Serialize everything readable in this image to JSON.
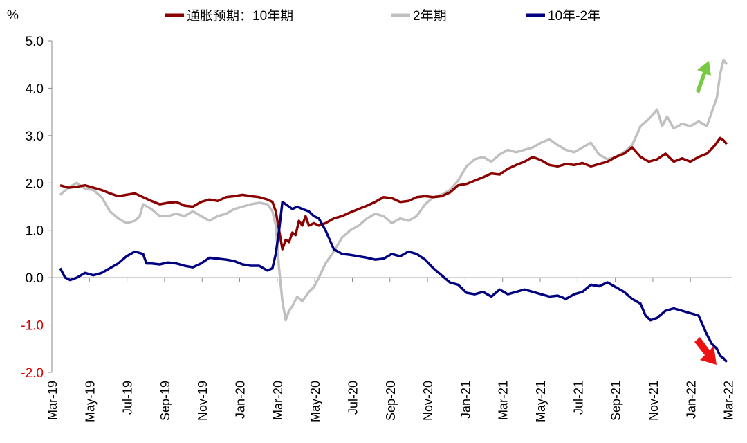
{
  "chart_data": {
    "type": "line",
    "y_unit": "%",
    "ylim": [
      -2.0,
      5.0
    ],
    "y_ticks": [
      {
        "value": 5.0,
        "label": "5.0"
      },
      {
        "value": 4.0,
        "label": "4.0"
      },
      {
        "value": 3.0,
        "label": "3.0"
      },
      {
        "value": 2.0,
        "label": "2.0"
      },
      {
        "value": 1.0,
        "label": "1.0"
      },
      {
        "value": 0.0,
        "label": "0.0"
      },
      {
        "value": -1.0,
        "label": "-1.0"
      },
      {
        "value": -2.0,
        "label": "-2.0"
      }
    ],
    "x_ticks": [
      "Mar-19",
      "May-19",
      "Jul-19",
      "Sep-19",
      "Nov-19",
      "Jan-20",
      "Mar-20",
      "May-20",
      "Jul-20",
      "Sep-20",
      "Nov-20",
      "Jan-21",
      "Mar-21",
      "May-21",
      "Jul-21",
      "Sep-21",
      "Nov-21",
      "Jan-22",
      "Mar-22"
    ],
    "xlim_months": [
      0,
      37
    ],
    "grid": false,
    "legend_position": "top",
    "series": [
      {
        "name": "通胀预期：10年期",
        "color": "#8b0000",
        "points": [
          [
            0,
            1.95
          ],
          [
            0.5,
            1.9
          ],
          [
            1,
            1.92
          ],
          [
            1.5,
            1.95
          ],
          [
            2,
            1.9
          ],
          [
            2.5,
            1.85
          ],
          [
            3,
            1.78
          ],
          [
            3.5,
            1.72
          ],
          [
            4,
            1.75
          ],
          [
            4.5,
            1.78
          ],
          [
            5,
            1.7
          ],
          [
            5.5,
            1.62
          ],
          [
            6,
            1.55
          ],
          [
            6.5,
            1.58
          ],
          [
            7,
            1.6
          ],
          [
            7.5,
            1.52
          ],
          [
            8,
            1.5
          ],
          [
            8.5,
            1.6
          ],
          [
            9,
            1.65
          ],
          [
            9.5,
            1.62
          ],
          [
            10,
            1.7
          ],
          [
            10.5,
            1.72
          ],
          [
            11,
            1.75
          ],
          [
            11.5,
            1.72
          ],
          [
            12,
            1.7
          ],
          [
            12.5,
            1.65
          ],
          [
            12.8,
            1.6
          ],
          [
            13,
            1.4
          ],
          [
            13.2,
            1.0
          ],
          [
            13.4,
            0.6
          ],
          [
            13.6,
            0.8
          ],
          [
            13.8,
            0.75
          ],
          [
            14,
            0.95
          ],
          [
            14.2,
            0.9
          ],
          [
            14.4,
            1.2
          ],
          [
            14.6,
            1.1
          ],
          [
            14.8,
            1.3
          ],
          [
            15,
            1.1
          ],
          [
            15.3,
            1.15
          ],
          [
            15.6,
            1.1
          ],
          [
            16,
            1.15
          ],
          [
            16.5,
            1.25
          ],
          [
            17,
            1.3
          ],
          [
            17.5,
            1.38
          ],
          [
            18,
            1.45
          ],
          [
            18.5,
            1.52
          ],
          [
            19,
            1.6
          ],
          [
            19.5,
            1.7
          ],
          [
            20,
            1.68
          ],
          [
            20.5,
            1.6
          ],
          [
            21,
            1.62
          ],
          [
            21.5,
            1.7
          ],
          [
            22,
            1.72
          ],
          [
            22.5,
            1.7
          ],
          [
            23,
            1.72
          ],
          [
            23.5,
            1.8
          ],
          [
            24,
            1.95
          ],
          [
            24.5,
            1.98
          ],
          [
            25,
            2.05
          ],
          [
            25.5,
            2.12
          ],
          [
            26,
            2.2
          ],
          [
            26.5,
            2.18
          ],
          [
            27,
            2.3
          ],
          [
            27.5,
            2.38
          ],
          [
            28,
            2.45
          ],
          [
            28.5,
            2.55
          ],
          [
            29,
            2.48
          ],
          [
            29.5,
            2.38
          ],
          [
            30,
            2.35
          ],
          [
            30.5,
            2.4
          ],
          [
            31,
            2.38
          ],
          [
            31.5,
            2.42
          ],
          [
            32,
            2.35
          ],
          [
            32.5,
            2.4
          ],
          [
            33,
            2.45
          ],
          [
            33.5,
            2.55
          ],
          [
            34,
            2.62
          ],
          [
            34.5,
            2.75
          ],
          [
            35,
            2.55
          ],
          [
            35.5,
            2.45
          ],
          [
            36,
            2.5
          ],
          [
            36.5,
            2.62
          ],
          [
            37,
            2.45
          ],
          [
            37.5,
            2.52
          ],
          [
            38,
            2.45
          ],
          [
            38.5,
            2.55
          ],
          [
            39,
            2.62
          ],
          [
            39.5,
            2.8
          ],
          [
            39.8,
            2.95
          ],
          [
            40,
            2.9
          ],
          [
            40.2,
            2.82
          ]
        ]
      },
      {
        "name": "2年期",
        "color": "#c0c0c0",
        "points": [
          [
            0,
            1.75
          ],
          [
            0.5,
            1.9
          ],
          [
            1,
            2.0
          ],
          [
            1.5,
            1.88
          ],
          [
            2,
            1.85
          ],
          [
            2.5,
            1.7
          ],
          [
            3,
            1.4
          ],
          [
            3.5,
            1.25
          ],
          [
            4,
            1.15
          ],
          [
            4.5,
            1.2
          ],
          [
            4.8,
            1.3
          ],
          [
            5,
            1.55
          ],
          [
            5.5,
            1.45
          ],
          [
            6,
            1.3
          ],
          [
            6.5,
            1.3
          ],
          [
            7,
            1.35
          ],
          [
            7.5,
            1.3
          ],
          [
            8,
            1.4
          ],
          [
            8.5,
            1.3
          ],
          [
            9,
            1.2
          ],
          [
            9.5,
            1.3
          ],
          [
            10,
            1.35
          ],
          [
            10.5,
            1.45
          ],
          [
            11,
            1.5
          ],
          [
            11.5,
            1.55
          ],
          [
            12,
            1.58
          ],
          [
            12.5,
            1.55
          ],
          [
            12.8,
            1.4
          ],
          [
            13,
            1.1
          ],
          [
            13.2,
            0.2
          ],
          [
            13.4,
            -0.5
          ],
          [
            13.6,
            -0.9
          ],
          [
            13.8,
            -0.7
          ],
          [
            14,
            -0.6
          ],
          [
            14.3,
            -0.4
          ],
          [
            14.6,
            -0.5
          ],
          [
            15,
            -0.3
          ],
          [
            15.3,
            -0.2
          ],
          [
            15.6,
            0.0
          ],
          [
            16,
            0.3
          ],
          [
            16.5,
            0.55
          ],
          [
            17,
            0.85
          ],
          [
            17.5,
            1.0
          ],
          [
            18,
            1.1
          ],
          [
            18.5,
            1.25
          ],
          [
            19,
            1.35
          ],
          [
            19.5,
            1.3
          ],
          [
            20,
            1.15
          ],
          [
            20.5,
            1.25
          ],
          [
            21,
            1.2
          ],
          [
            21.5,
            1.3
          ],
          [
            22,
            1.55
          ],
          [
            22.5,
            1.7
          ],
          [
            23,
            1.75
          ],
          [
            23.5,
            1.85
          ],
          [
            24,
            2.05
          ],
          [
            24.5,
            2.35
          ],
          [
            25,
            2.5
          ],
          [
            25.5,
            2.55
          ],
          [
            26,
            2.45
          ],
          [
            26.5,
            2.6
          ],
          [
            27,
            2.7
          ],
          [
            27.5,
            2.65
          ],
          [
            28,
            2.7
          ],
          [
            28.5,
            2.75
          ],
          [
            29,
            2.85
          ],
          [
            29.5,
            2.92
          ],
          [
            30,
            2.8
          ],
          [
            30.5,
            2.7
          ],
          [
            31,
            2.65
          ],
          [
            31.5,
            2.75
          ],
          [
            32,
            2.85
          ],
          [
            32.5,
            2.6
          ],
          [
            33,
            2.5
          ],
          [
            33.5,
            2.55
          ],
          [
            34,
            2.65
          ],
          [
            34.5,
            2.8
          ],
          [
            35,
            3.2
          ],
          [
            35.5,
            3.35
          ],
          [
            36,
            3.55
          ],
          [
            36.3,
            3.2
          ],
          [
            36.6,
            3.4
          ],
          [
            37,
            3.15
          ],
          [
            37.5,
            3.25
          ],
          [
            38,
            3.2
          ],
          [
            38.5,
            3.3
          ],
          [
            39,
            3.2
          ],
          [
            39.3,
            3.5
          ],
          [
            39.6,
            3.8
          ],
          [
            39.8,
            4.3
          ],
          [
            40,
            4.6
          ],
          [
            40.2,
            4.5
          ]
        ]
      },
      {
        "name": "10年-2年",
        "color": "#000080",
        "points": [
          [
            0,
            0.2
          ],
          [
            0.3,
            0.0
          ],
          [
            0.6,
            -0.05
          ],
          [
            1,
            0.0
          ],
          [
            1.5,
            0.1
          ],
          [
            2,
            0.05
          ],
          [
            2.5,
            0.1
          ],
          [
            3,
            0.2
          ],
          [
            3.5,
            0.3
          ],
          [
            4,
            0.45
          ],
          [
            4.5,
            0.55
          ],
          [
            5,
            0.5
          ],
          [
            5.2,
            0.3
          ],
          [
            5.5,
            0.3
          ],
          [
            6,
            0.28
          ],
          [
            6.5,
            0.32
          ],
          [
            7,
            0.3
          ],
          [
            7.5,
            0.25
          ],
          [
            8,
            0.22
          ],
          [
            8.5,
            0.3
          ],
          [
            9,
            0.42
          ],
          [
            9.5,
            0.4
          ],
          [
            10,
            0.38
          ],
          [
            10.5,
            0.35
          ],
          [
            11,
            0.28
          ],
          [
            11.5,
            0.25
          ],
          [
            12,
            0.25
          ],
          [
            12.5,
            0.15
          ],
          [
            12.8,
            0.2
          ],
          [
            13,
            0.5
          ],
          [
            13.2,
            1.0
          ],
          [
            13.4,
            1.6
          ],
          [
            13.6,
            1.55
          ],
          [
            13.8,
            1.5
          ],
          [
            14,
            1.45
          ],
          [
            14.3,
            1.5
          ],
          [
            14.6,
            1.45
          ],
          [
            15,
            1.4
          ],
          [
            15.3,
            1.3
          ],
          [
            15.6,
            1.25
          ],
          [
            16,
            1.0
          ],
          [
            16.5,
            0.6
          ],
          [
            17,
            0.5
          ],
          [
            17.5,
            0.48
          ],
          [
            18,
            0.45
          ],
          [
            18.5,
            0.42
          ],
          [
            19,
            0.38
          ],
          [
            19.5,
            0.4
          ],
          [
            20,
            0.5
          ],
          [
            20.5,
            0.45
          ],
          [
            21,
            0.55
          ],
          [
            21.5,
            0.5
          ],
          [
            22,
            0.38
          ],
          [
            22.5,
            0.2
          ],
          [
            23,
            0.05
          ],
          [
            23.5,
            -0.1
          ],
          [
            24,
            -0.15
          ],
          [
            24.5,
            -0.32
          ],
          [
            25,
            -0.35
          ],
          [
            25.5,
            -0.3
          ],
          [
            26,
            -0.4
          ],
          [
            26.5,
            -0.25
          ],
          [
            27,
            -0.35
          ],
          [
            27.5,
            -0.3
          ],
          [
            28,
            -0.25
          ],
          [
            28.5,
            -0.3
          ],
          [
            29,
            -0.35
          ],
          [
            29.5,
            -0.4
          ],
          [
            30,
            -0.38
          ],
          [
            30.5,
            -0.45
          ],
          [
            31,
            -0.35
          ],
          [
            31.5,
            -0.3
          ],
          [
            32,
            -0.15
          ],
          [
            32.5,
            -0.18
          ],
          [
            33,
            -0.1
          ],
          [
            33.5,
            -0.2
          ],
          [
            34,
            -0.3
          ],
          [
            34.5,
            -0.45
          ],
          [
            35,
            -0.55
          ],
          [
            35.3,
            -0.8
          ],
          [
            35.6,
            -0.9
          ],
          [
            36,
            -0.85
          ],
          [
            36.5,
            -0.7
          ],
          [
            37,
            -0.65
          ],
          [
            37.5,
            -0.7
          ],
          [
            38,
            -0.75
          ],
          [
            38.5,
            -0.8
          ],
          [
            39,
            -1.2
          ],
          [
            39.3,
            -1.4
          ],
          [
            39.6,
            -1.5
          ],
          [
            39.8,
            -1.65
          ],
          [
            40,
            -1.7
          ],
          [
            40.2,
            -1.78
          ]
        ]
      }
    ],
    "annotations": [
      {
        "type": "arrow-up",
        "color": "#7ac943",
        "near_series": "2年期"
      },
      {
        "type": "arrow-down",
        "color": "#ee1111",
        "near_series": "10年-2年"
      }
    ]
  }
}
